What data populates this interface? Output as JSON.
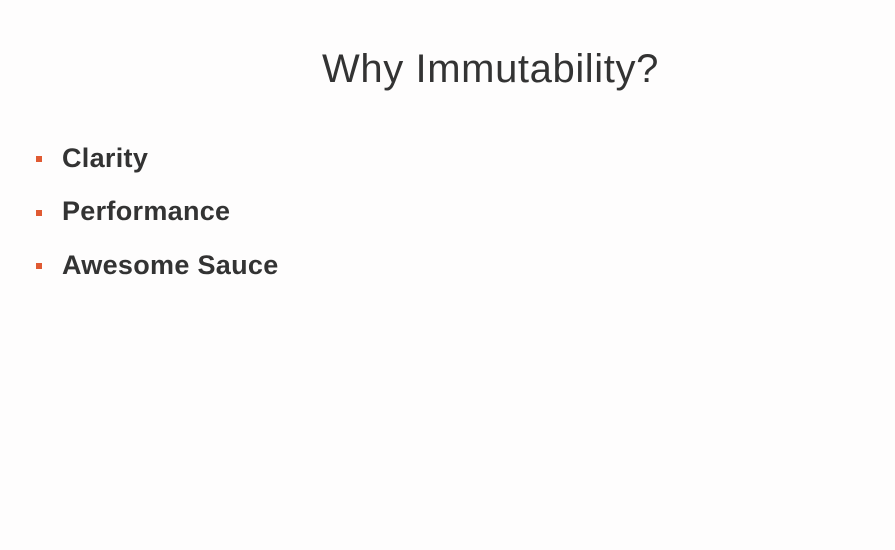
{
  "slide": {
    "title": "Why Immutability?",
    "bullets": [
      {
        "label": "Clarity"
      },
      {
        "label": "Performance"
      },
      {
        "label": "Awesome Sauce"
      }
    ],
    "colors": {
      "background": "#fefdfd",
      "text": "#333333",
      "bullet_marker": "#e05a33"
    }
  }
}
